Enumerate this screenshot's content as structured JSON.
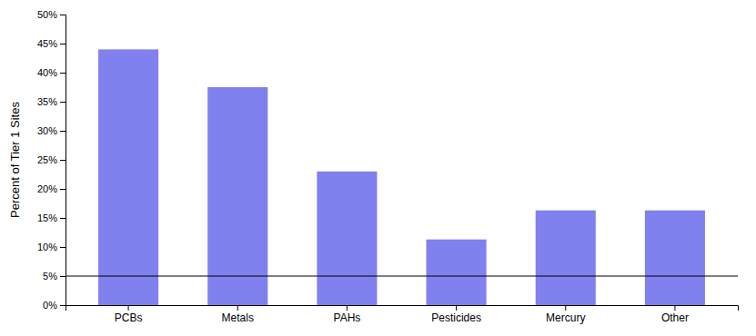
{
  "chart_data": {
    "type": "bar",
    "categories": [
      "PCBs",
      "Metals",
      "PAHs",
      "Pesticides",
      "Mercury",
      "Other"
    ],
    "values": [
      0.44,
      0.375,
      0.23,
      0.113,
      0.163,
      0.163
    ],
    "color": "#8080ee",
    "ylabel": "Percent of Tier 1 Sites",
    "ylim": [
      0,
      0.5
    ],
    "yticks": [
      {
        "value": 0.0,
        "label": "0%"
      },
      {
        "value": 0.05,
        "label": "5%"
      },
      {
        "value": 0.1,
        "label": "10%"
      },
      {
        "value": 0.15,
        "label": "15%"
      },
      {
        "value": 0.2,
        "label": "20%"
      },
      {
        "value": 0.25,
        "label": "25%"
      },
      {
        "value": 0.3,
        "label": "30%"
      },
      {
        "value": 0.35,
        "label": "35%"
      },
      {
        "value": 0.4,
        "label": "40%"
      },
      {
        "value": 0.45,
        "label": "45%"
      },
      {
        "value": 0.5,
        "label": "50%"
      }
    ],
    "hline": 0.05,
    "grid": false
  }
}
